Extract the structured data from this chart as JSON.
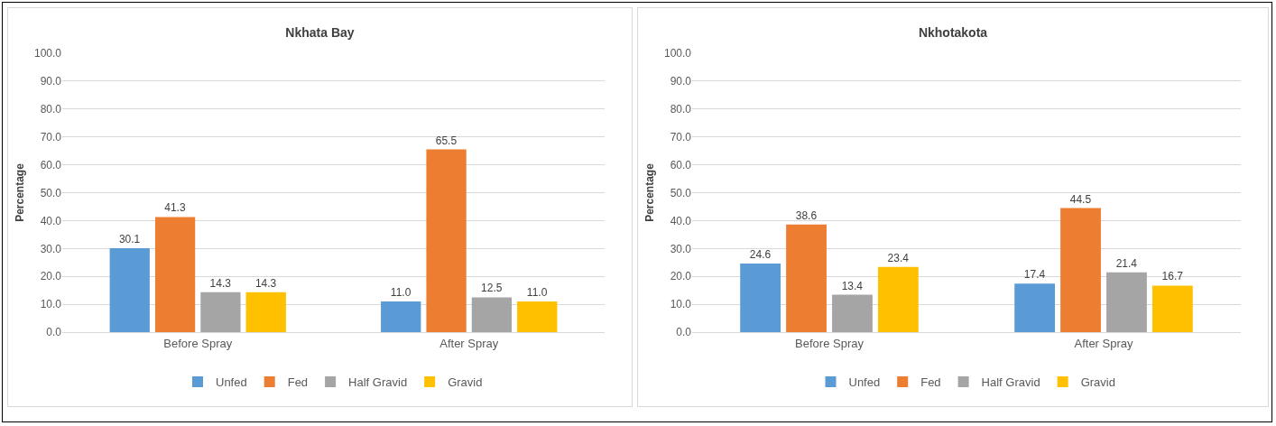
{
  "chart_data": [
    {
      "type": "bar",
      "title": "Nkhata Bay",
      "ylabel": "Percentage",
      "categories": [
        "Before Spray",
        "After Spray"
      ],
      "ylim": [
        0,
        100
      ],
      "yticks": [
        {
          "value": 0,
          "label": "0.0"
        },
        {
          "value": 10,
          "label": "10.0"
        },
        {
          "value": 20,
          "label": "20.0"
        },
        {
          "value": 30,
          "label": "30.0"
        },
        {
          "value": 40,
          "label": "40.0"
        },
        {
          "value": 50,
          "label": "50.0"
        },
        {
          "value": 60,
          "label": "60.0"
        },
        {
          "value": 70,
          "label": "70.0"
        },
        {
          "value": 80,
          "label": "80.0"
        },
        {
          "value": 90,
          "label": "90.0"
        },
        {
          "value": 100,
          "label": "100.0"
        }
      ],
      "grid": "y",
      "legend": "bottom",
      "series": [
        {
          "name": "Unfed",
          "color": "#5b9bd5",
          "values": [
            30.1,
            11.0
          ],
          "value_labels": [
            "30.1",
            "11.0"
          ]
        },
        {
          "name": "Fed",
          "color": "#ed7d31",
          "values": [
            41.3,
            65.5
          ],
          "value_labels": [
            "41.3",
            "65.5"
          ]
        },
        {
          "name": "Half Gravid",
          "color": "#a5a5a5",
          "values": [
            14.3,
            12.5
          ],
          "value_labels": [
            "14.3",
            "12.5"
          ]
        },
        {
          "name": "Gravid",
          "color": "#ffc000",
          "values": [
            14.3,
            11.0
          ],
          "value_labels": [
            "14.3",
            "11.0"
          ]
        }
      ]
    },
    {
      "type": "bar",
      "title": "Nkhotakota",
      "ylabel": "Percentage",
      "categories": [
        "Before Spray",
        "After Spray"
      ],
      "ylim": [
        0,
        100
      ],
      "yticks": [
        {
          "value": 0,
          "label": "0.0"
        },
        {
          "value": 10,
          "label": "10.0"
        },
        {
          "value": 20,
          "label": "20.0"
        },
        {
          "value": 30,
          "label": "30.0"
        },
        {
          "value": 40,
          "label": "40.0"
        },
        {
          "value": 50,
          "label": "50.0"
        },
        {
          "value": 60,
          "label": "60.0"
        },
        {
          "value": 70,
          "label": "70.0"
        },
        {
          "value": 80,
          "label": "80.0"
        },
        {
          "value": 90,
          "label": "90.0"
        },
        {
          "value": 100,
          "label": "100.0"
        }
      ],
      "grid": "y",
      "legend": "bottom",
      "series": [
        {
          "name": "Unfed",
          "color": "#5b9bd5",
          "values": [
            24.6,
            17.4
          ],
          "value_labels": [
            "24.6",
            "17.4"
          ]
        },
        {
          "name": "Fed",
          "color": "#ed7d31",
          "values": [
            38.6,
            44.5
          ],
          "value_labels": [
            "38.6",
            "44.5"
          ]
        },
        {
          "name": "Half Gravid",
          "color": "#a5a5a5",
          "values": [
            13.4,
            21.4
          ],
          "value_labels": [
            "13.4",
            "21.4"
          ]
        },
        {
          "name": "Gravid",
          "color": "#ffc000",
          "values": [
            23.4,
            16.7
          ],
          "value_labels": [
            "23.4",
            "16.7"
          ]
        }
      ]
    }
  ]
}
